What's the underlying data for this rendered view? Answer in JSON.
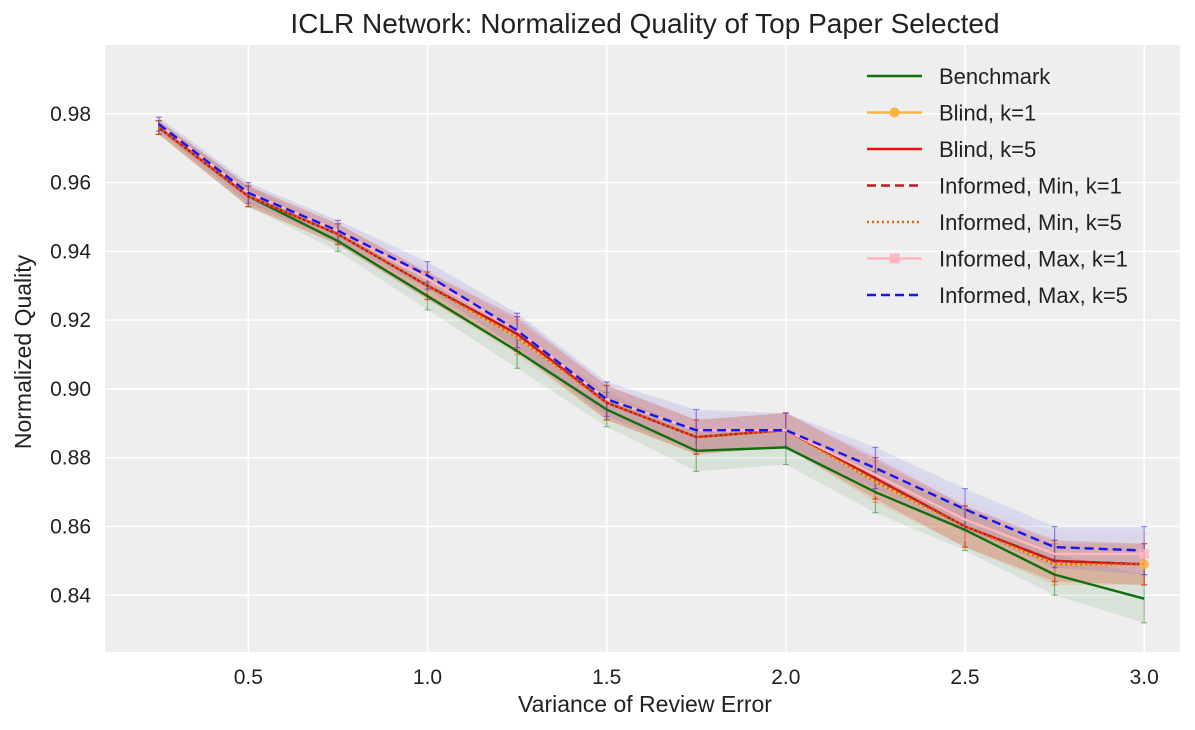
{
  "chart_data": {
    "type": "line",
    "title": "ICLR Network: Normalized Quality of Top Paper Selected",
    "xlabel": "Variance of Review Error",
    "ylabel": "Normalized Quality",
    "xlim": [
      0.1,
      3.1
    ],
    "ylim": [
      0.8235,
      1.0
    ],
    "x_ticks": [
      0.5,
      1.0,
      1.5,
      2.0,
      2.5,
      3.0
    ],
    "x_tick_labels": [
      "0.5",
      "1.0",
      "1.5",
      "2.0",
      "2.5",
      "3.0"
    ],
    "y_ticks": [
      0.84,
      0.86,
      0.88,
      0.9,
      0.92,
      0.94,
      0.96,
      0.98
    ],
    "y_tick_labels": [
      "0.84",
      "0.86",
      "0.88",
      "0.90",
      "0.92",
      "0.94",
      "0.96",
      "0.98"
    ],
    "grid": true,
    "legend_position": "top-right",
    "x": [
      0.25,
      0.5,
      0.75,
      1.0,
      1.25,
      1.5,
      1.75,
      2.0,
      2.25,
      2.5,
      2.75,
      3.0
    ],
    "series": [
      {
        "name": "Benchmark",
        "color": "#107010",
        "dash": "solid",
        "marker": "none",
        "band_color": "#107010",
        "values": [
          0.976,
          0.956,
          0.943,
          0.927,
          0.911,
          0.894,
          0.882,
          0.883,
          0.87,
          0.859,
          0.846,
          0.839
        ],
        "error": [
          0.002,
          0.003,
          0.003,
          0.004,
          0.005,
          0.005,
          0.006,
          0.005,
          0.006,
          0.006,
          0.006,
          0.007
        ]
      },
      {
        "name": "Blind, k=1",
        "color": "#F9B343",
        "dash": "solid",
        "marker": "circle",
        "band_color": "#F9B343",
        "values": [
          0.976,
          0.956,
          0.945,
          0.93,
          0.915,
          0.896,
          0.886,
          0.888,
          0.873,
          0.86,
          0.849,
          0.849
        ],
        "error": [
          0.002,
          0.003,
          0.003,
          0.004,
          0.005,
          0.005,
          0.005,
          0.005,
          0.006,
          0.006,
          0.006,
          0.006
        ]
      },
      {
        "name": "Blind, k=5",
        "color": "#EE1010",
        "dash": "solid",
        "marker": "none",
        "band_color": "#EE1010",
        "values": [
          0.976,
          0.956,
          0.945,
          0.93,
          0.916,
          0.896,
          0.886,
          0.888,
          0.874,
          0.86,
          0.85,
          0.849
        ],
        "error": [
          0.002,
          0.003,
          0.003,
          0.004,
          0.005,
          0.005,
          0.005,
          0.005,
          0.006,
          0.006,
          0.006,
          0.006
        ]
      },
      {
        "name": "Informed, Min, k=1",
        "color": "#B22222",
        "dash": "dashed",
        "marker": "none",
        "band_color": "#B22222",
        "values": [
          0.976,
          0.956,
          0.945,
          0.93,
          0.916,
          0.896,
          0.886,
          0.888,
          0.874,
          0.86,
          0.85,
          0.849
        ],
        "error": [
          0.002,
          0.003,
          0.003,
          0.004,
          0.005,
          0.005,
          0.005,
          0.005,
          0.006,
          0.006,
          0.006,
          0.006
        ]
      },
      {
        "name": "Informed, Min, k=5",
        "color": "#D2691E",
        "dash": "dotted",
        "marker": "none",
        "band_color": "#D2691E",
        "values": [
          0.976,
          0.956,
          0.945,
          0.93,
          0.915,
          0.896,
          0.886,
          0.888,
          0.873,
          0.86,
          0.849,
          0.849
        ],
        "error": [
          0.002,
          0.003,
          0.003,
          0.004,
          0.005,
          0.005,
          0.005,
          0.005,
          0.006,
          0.006,
          0.006,
          0.006
        ]
      },
      {
        "name": "Informed, Max, k=1",
        "color": "#FFB6C1",
        "dash": "solid",
        "marker": "square",
        "band_color": "#FFB6C1",
        "values": [
          0.977,
          0.957,
          0.946,
          0.932,
          0.917,
          0.897,
          0.888,
          0.888,
          0.875,
          0.862,
          0.852,
          0.852
        ],
        "error": [
          0.002,
          0.003,
          0.003,
          0.004,
          0.005,
          0.005,
          0.005,
          0.005,
          0.006,
          0.006,
          0.006,
          0.006
        ]
      },
      {
        "name": "Informed, Max, k=5",
        "color": "#1515EE",
        "dash": "dashed",
        "marker": "none",
        "band_color": "#1515EE",
        "values": [
          0.977,
          0.957,
          0.946,
          0.933,
          0.917,
          0.897,
          0.888,
          0.888,
          0.877,
          0.865,
          0.854,
          0.853
        ],
        "error": [
          0.002,
          0.003,
          0.003,
          0.004,
          0.005,
          0.005,
          0.006,
          0.005,
          0.006,
          0.006,
          0.006,
          0.007
        ]
      }
    ]
  }
}
